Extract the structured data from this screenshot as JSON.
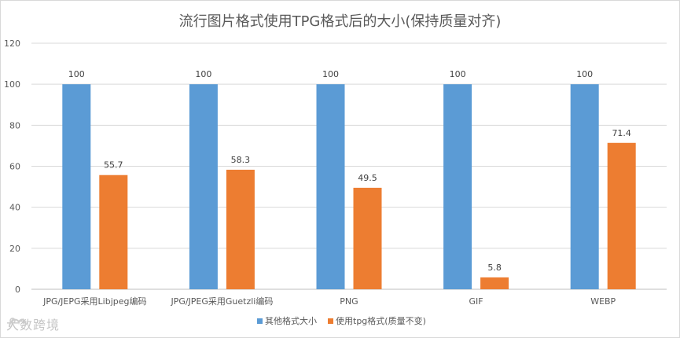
{
  "chart_data": {
    "type": "bar",
    "title": "流行图片格式使用TPG格式后的大小(保持质量对齐)",
    "categories": [
      "JPG/JEPG采用Libjpeg编码",
      "JPG/JPEG采用Guetzli编码",
      "PNG",
      "GIF",
      "WEBP"
    ],
    "series": [
      {
        "name": "其他格式大小",
        "values": [
          100,
          100,
          100,
          100,
          100
        ],
        "color": "#5b9bd5"
      },
      {
        "name": "使用tpg格式(质量不变)",
        "values": [
          55.7,
          58.3,
          49.5,
          5.8,
          71.4
        ],
        "color": "#ed7d31"
      }
    ],
    "ylim": [
      0,
      120
    ],
    "yticks": [
      0,
      20,
      40,
      60,
      80,
      100,
      120
    ],
    "grid": true,
    "legend_position": "bottom",
    "data_labels": true
  },
  "watermark": {
    "text": "大数跨境"
  }
}
